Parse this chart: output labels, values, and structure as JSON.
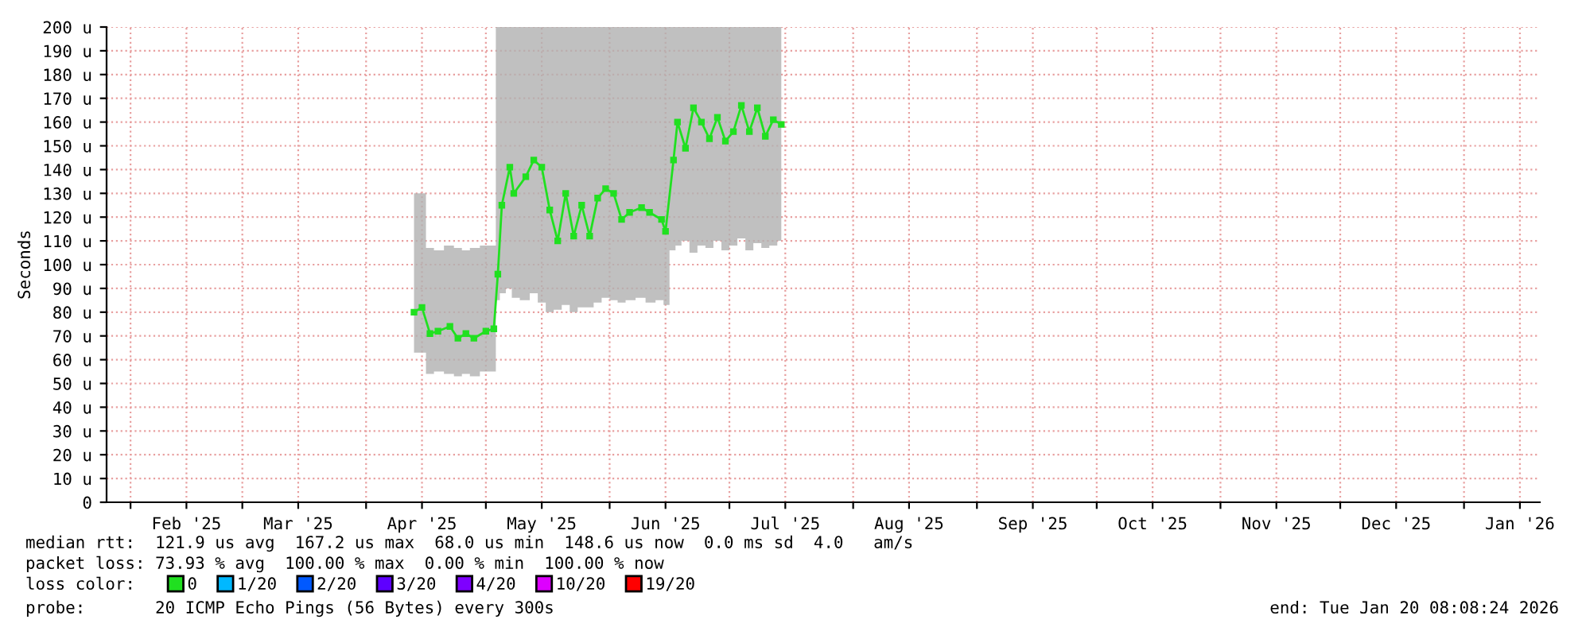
{
  "chart_data": {
    "type": "line",
    "ylabel": "Seconds",
    "xlim": [
      "2025-01-26",
      "2026-01-20"
    ],
    "xticks": [
      {
        "value": "2025-02-01",
        "label": null
      },
      {
        "value": "2025-02-15",
        "label": "Feb '25"
      },
      {
        "value": "2025-03-01",
        "label": null
      },
      {
        "value": "2025-03-15",
        "label": "Mar '25"
      },
      {
        "value": "2025-04-01",
        "label": null
      },
      {
        "value": "2025-04-15",
        "label": "Apr '25"
      },
      {
        "value": "2025-05-01",
        "label": null
      },
      {
        "value": "2025-05-15",
        "label": "May '25"
      },
      {
        "value": "2025-06-01",
        "label": null
      },
      {
        "value": "2025-06-15",
        "label": "Jun '25"
      },
      {
        "value": "2025-07-01",
        "label": null
      },
      {
        "value": "2025-07-15",
        "label": "Jul '25"
      },
      {
        "value": "2025-08-01",
        "label": null
      },
      {
        "value": "2025-08-15",
        "label": "Aug '25"
      },
      {
        "value": "2025-09-01",
        "label": null
      },
      {
        "value": "2025-09-15",
        "label": "Sep '25"
      },
      {
        "value": "2025-10-01",
        "label": null
      },
      {
        "value": "2025-10-15",
        "label": "Oct '25"
      },
      {
        "value": "2025-11-01",
        "label": null
      },
      {
        "value": "2025-11-15",
        "label": "Nov '25"
      },
      {
        "value": "2025-12-01",
        "label": null
      },
      {
        "value": "2025-12-15",
        "label": "Dec '25"
      },
      {
        "value": "2026-01-01",
        "label": null
      },
      {
        "value": "2026-01-15",
        "label": "Jan '26"
      }
    ],
    "ylim": [
      0,
      200
    ],
    "yticks": [
      0,
      {
        "value": 10,
        "label": "10 u"
      },
      {
        "value": 20,
        "label": "20 u"
      },
      {
        "value": 30,
        "label": "30 u"
      },
      {
        "value": 40,
        "label": "40 u"
      },
      {
        "value": 50,
        "label": "50 u"
      },
      {
        "value": 60,
        "label": "60 u"
      },
      {
        "value": 70,
        "label": "70 u"
      },
      {
        "value": 80,
        "label": "80 u"
      },
      {
        "value": 90,
        "label": "90 u"
      },
      {
        "value": 100,
        "label": "100 u"
      },
      {
        "value": 110,
        "label": "110 u"
      },
      {
        "value": 120,
        "label": "120 u"
      },
      {
        "value": 130,
        "label": "130 u"
      },
      {
        "value": 140,
        "label": "140 u"
      },
      {
        "value": 150,
        "label": "150 u"
      },
      {
        "value": 160,
        "label": "160 u"
      },
      {
        "value": 170,
        "label": "170 u"
      },
      {
        "value": 180,
        "label": "180 u"
      },
      {
        "value": 190,
        "label": "190 u"
      },
      {
        "value": 200,
        "label": "200 u"
      }
    ],
    "grid": true,
    "legend": "bottom left",
    "legend_title": "loss color:",
    "marker": "square",
    "line_style": "solid",
    "series": [
      {
        "name": "0",
        "color": "#20e020",
        "x": [
          "2025-04-13",
          "2025-04-15",
          "2025-04-17",
          "2025-04-19",
          "2025-04-22",
          "2025-04-24",
          "2025-04-26",
          "2025-04-28",
          "2025-05-01",
          "2025-05-03",
          "2025-05-04",
          "2025-05-05",
          "2025-05-07",
          "2025-05-08",
          "2025-05-11",
          "2025-05-13",
          "2025-05-15",
          "2025-05-17",
          "2025-05-19",
          "2025-05-21",
          "2025-05-23",
          "2025-05-25",
          "2025-05-27",
          "2025-05-29",
          "2025-05-31",
          "2025-06-02",
          "2025-06-04",
          "2025-06-06",
          "2025-06-09",
          "2025-06-11",
          "2025-06-14",
          "2025-06-15",
          "2025-06-17",
          "2025-06-18",
          "2025-06-20",
          "2025-06-22",
          "2025-06-24",
          "2025-06-26",
          "2025-06-28",
          "2025-06-30",
          "2025-07-02",
          "2025-07-04",
          "2025-07-06",
          "2025-07-08",
          "2025-07-10",
          "2025-07-12",
          "2025-07-14"
        ],
        "values": [
          80,
          82,
          71,
          72,
          74,
          69,
          71,
          69,
          72,
          73,
          96,
          125,
          141,
          130,
          137,
          144,
          141,
          123,
          110,
          130,
          112,
          125,
          112,
          128,
          132,
          130,
          119,
          122,
          124,
          122,
          119,
          114,
          144,
          160,
          149,
          166,
          160,
          153,
          162,
          152,
          156,
          167,
          156,
          166,
          154,
          161,
          159
        ],
        "lower": [
          63,
          63,
          54,
          55,
          54,
          53,
          54,
          53,
          55,
          55,
          85,
          88,
          90,
          86,
          85,
          88,
          84,
          80,
          81,
          83,
          80,
          82,
          82,
          84,
          86,
          85,
          84,
          85,
          86,
          84,
          85,
          83,
          106,
          108,
          110,
          105,
          108,
          107,
          110,
          106,
          108,
          111,
          106,
          109,
          107,
          108,
          110
        ],
        "upper": [
          130,
          130,
          107,
          106,
          108,
          107,
          106,
          107,
          108,
          108,
          200,
          200,
          200,
          200,
          200,
          200,
          200,
          200,
          200,
          200,
          200,
          200,
          200,
          200,
          200,
          200,
          200,
          200,
          200,
          200,
          200,
          200,
          200,
          200,
          200,
          200,
          200,
          200,
          200,
          200,
          200,
          200,
          200,
          200,
          200,
          200,
          200
        ]
      },
      {
        "name": "1/20",
        "color": "#00b8ff"
      },
      {
        "name": "2/20",
        "color": "#0059ff"
      },
      {
        "name": "3/20",
        "color": "#5e00ff"
      },
      {
        "name": "4/20",
        "color": "#7e00ff"
      },
      {
        "name": "10/20",
        "color": "#dd00ff"
      },
      {
        "name": "19/20",
        "color": "#ff0000"
      }
    ],
    "annotations": [
      "median rtt:  121.9 us avg  167.2 us max  68.0 us min  148.6 us now  0.0 ms sd  4.0   am/s",
      "packet loss: 73.93 % avg  100.00 % max  0.00 % min  100.00 % now",
      "probe:       20 ICMP Echo Pings (56 Bytes) every 300s",
      "end: Tue Jan 20 08:08:24 2026"
    ]
  }
}
